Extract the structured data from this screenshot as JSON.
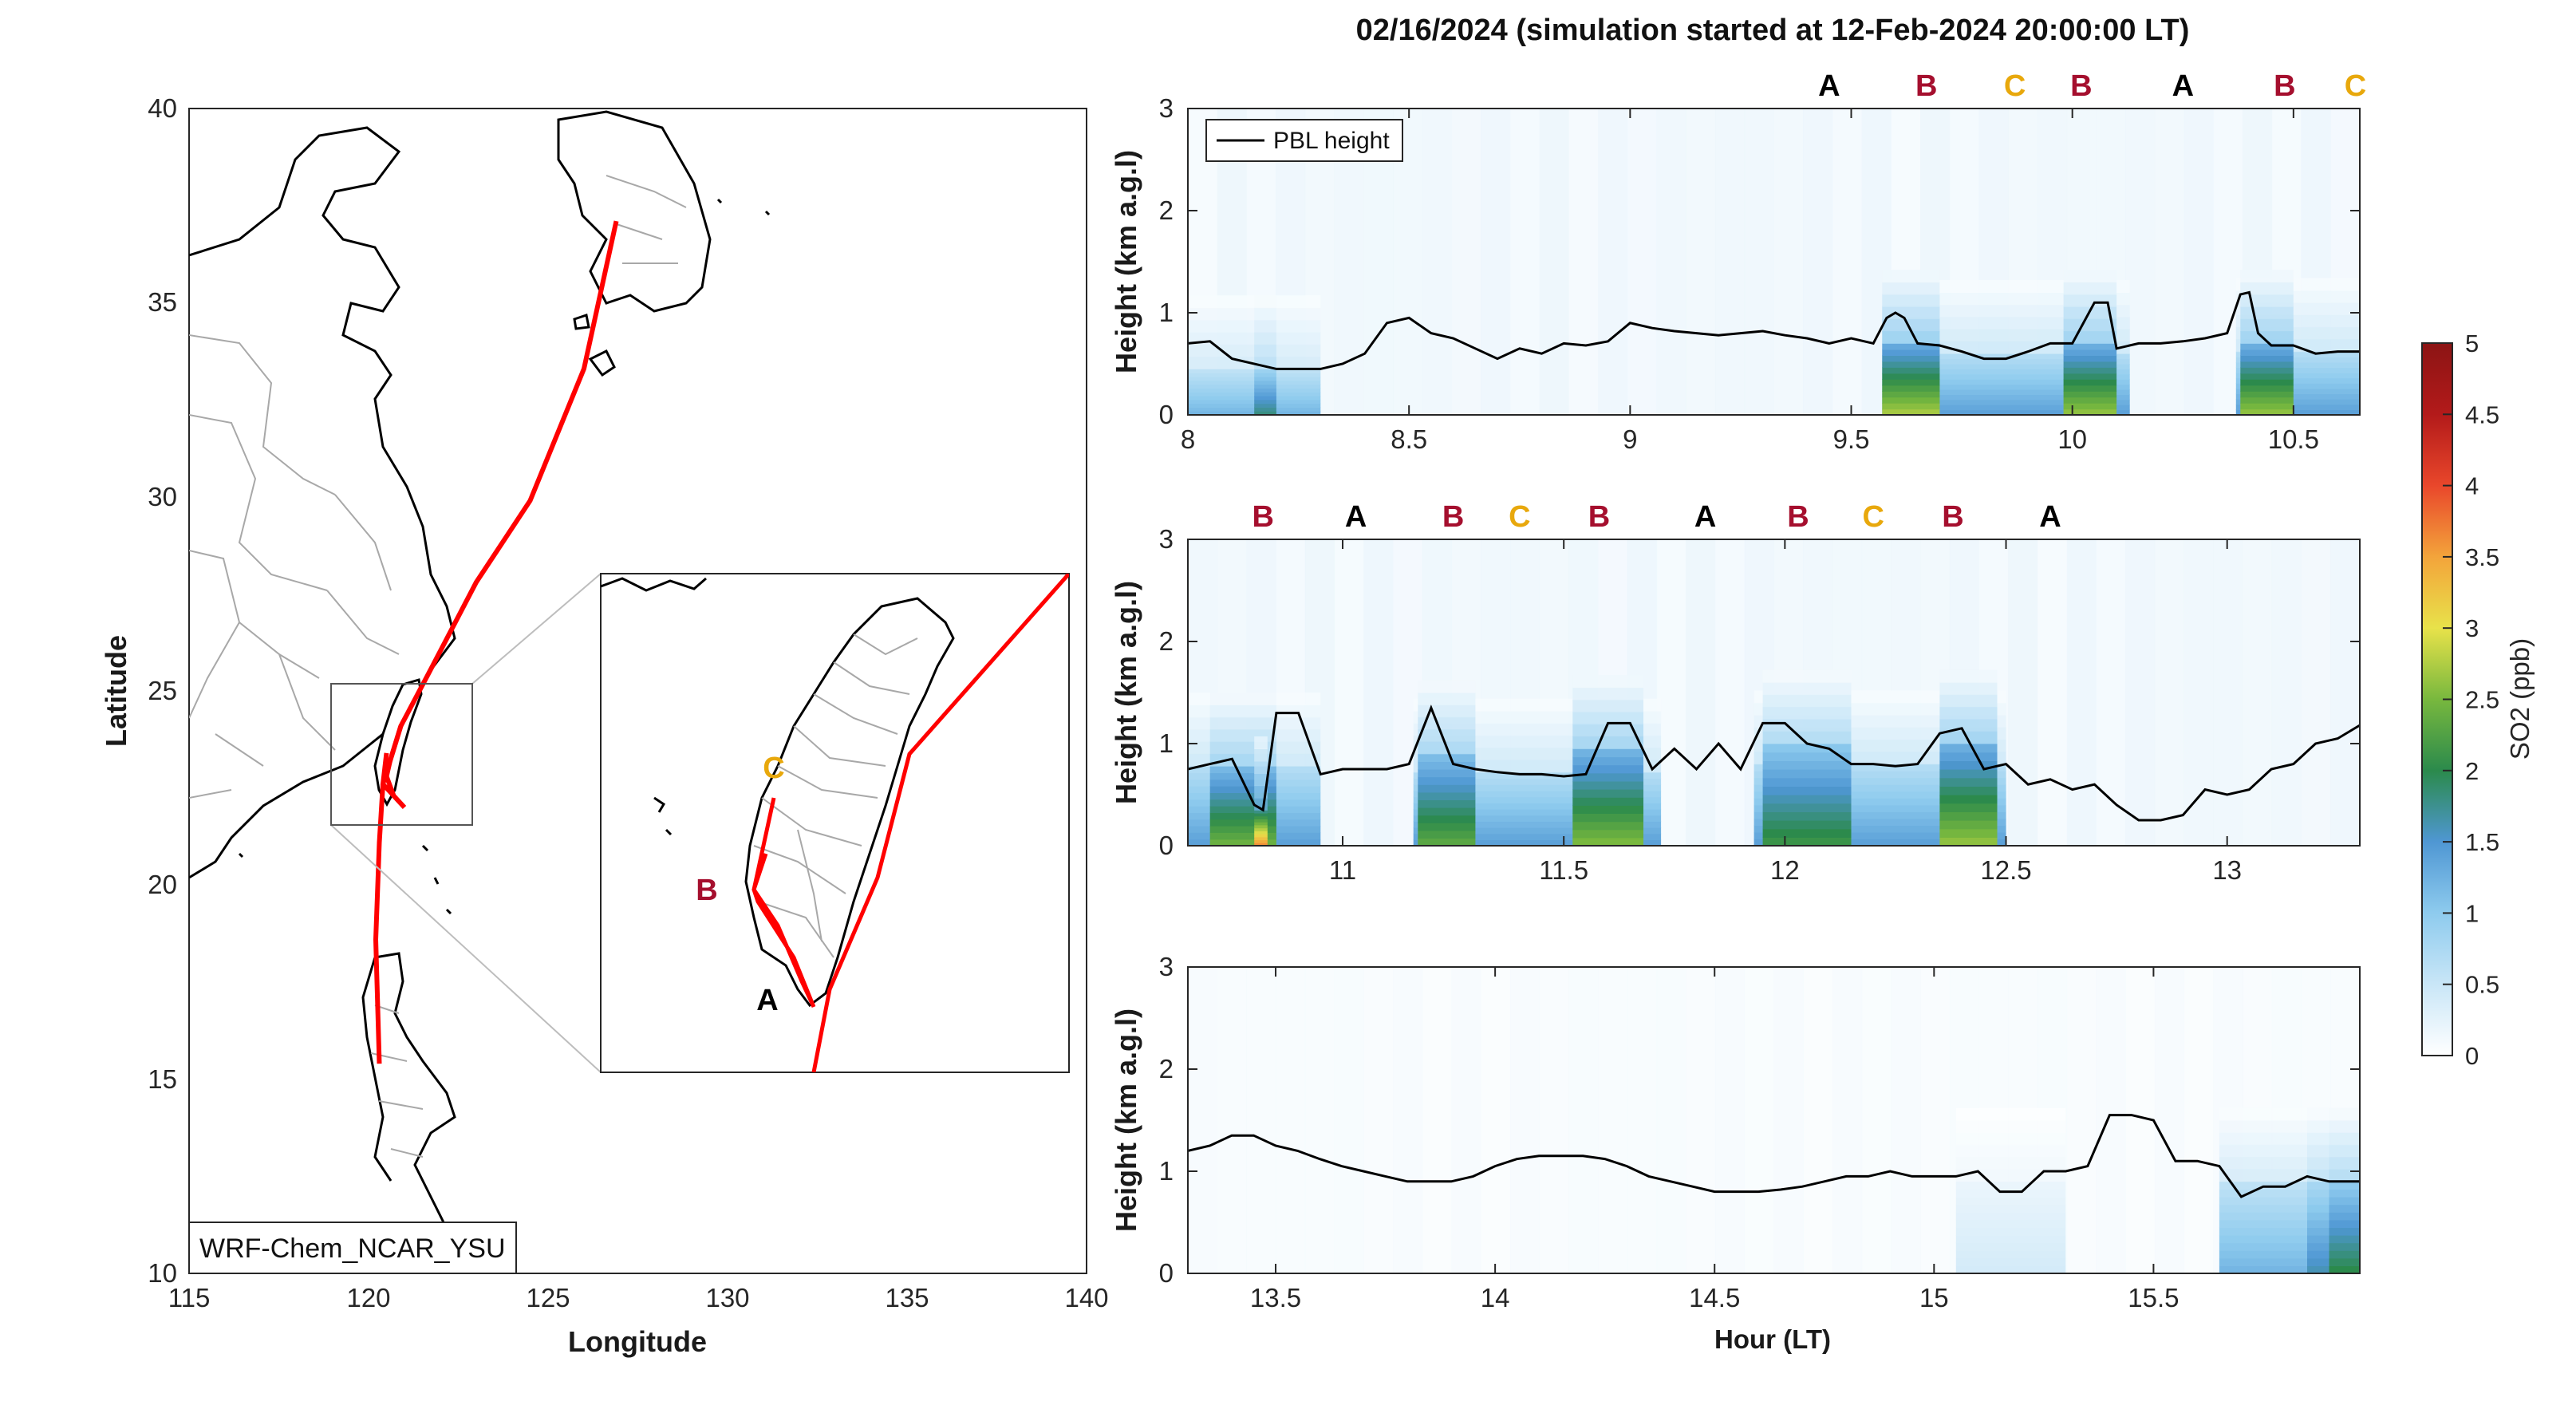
{
  "figure": {
    "title": "02/16/2024 (simulation started at 12-Feb-2024 20:00:00 LT)"
  },
  "map": {
    "xlabel": "Longitude",
    "ylabel": "Latitude",
    "xlim": [
      115,
      140
    ],
    "ylim": [
      10,
      40
    ],
    "xticks": [
      "115",
      "120",
      "125",
      "130",
      "135",
      "140"
    ],
    "yticks": [
      "10",
      "15",
      "20",
      "25",
      "30",
      "35",
      "40"
    ],
    "model_label": "WRF-Chem_NCAR_YSU",
    "track_color": "#ff0000",
    "track": [
      [
        126.9,
        37.1
      ],
      [
        126.0,
        33.3
      ],
      [
        124.5,
        29.9
      ],
      [
        123.0,
        27.8
      ],
      [
        121.7,
        25.5
      ],
      [
        120.9,
        24.1
      ],
      [
        120.4,
        22.6
      ],
      [
        120.3,
        21.1
      ],
      [
        120.2,
        18.6
      ],
      [
        120.3,
        15.4
      ]
    ],
    "inset_box_lonlat": [
      119.0,
      21.5,
      123.1,
      25.6
    ],
    "inset_labels": [
      {
        "text": "A",
        "color": "#000000"
      },
      {
        "text": "B",
        "color": "#a50f2e"
      },
      {
        "text": "C",
        "color": "#e8a80c"
      }
    ]
  },
  "legend": {
    "pbl_label": "PBL height"
  },
  "colorbar": {
    "label": "SO2 (ppb)",
    "ticks": [
      "0",
      "0.5",
      "1",
      "1.5",
      "2",
      "2.5",
      "3",
      "3.5",
      "4",
      "4.5",
      "5"
    ],
    "range": [
      0,
      5
    ],
    "colors": [
      "#ffffff",
      "#c9e6f7",
      "#8ecbee",
      "#4f97d3",
      "#2b8a4c",
      "#78b83e",
      "#e8e24a",
      "#f3a43b",
      "#e9472b",
      "#b31a1a",
      "#8c1414"
    ]
  },
  "panels": [
    {
      "ylabel": "Height (km a.g.l)",
      "xlabel": "",
      "xticks": [
        "8",
        "8.5",
        "9",
        "9.5",
        "10",
        "10.5"
      ],
      "yticks": [
        "0",
        "1",
        "2",
        "3"
      ]
    },
    {
      "ylabel": "Height (km a.g.l)",
      "xlabel": "",
      "xticks": [
        "11",
        "11.5",
        "12",
        "12.5",
        "13"
      ],
      "yticks": [
        "0",
        "1",
        "2",
        "3"
      ]
    },
    {
      "ylabel": "Height (km a.g.l)",
      "xlabel": "Hour (LT)",
      "xticks": [
        "13.5",
        "14",
        "14.5",
        "15",
        "15.5"
      ],
      "yticks": [
        "0",
        "1",
        "2",
        "3"
      ]
    }
  ],
  "chart_data": {
    "type": "heatmap",
    "title": "02/16/2024 (simulation started at 12-Feb-2024 20:00:00 LT)",
    "colorbar_label": "SO2 (ppb)",
    "zlim": [
      0,
      5
    ],
    "panels": [
      {
        "xlim": [
          8.0,
          10.65
        ],
        "ylim": [
          0,
          3
        ],
        "ylabel": "Height (km a.g.l)",
        "segment_labels": [
          {
            "x": 9.45,
            "text": "A"
          },
          {
            "x": 9.67,
            "text": "B"
          },
          {
            "x": 9.87,
            "text": "C"
          },
          {
            "x": 10.02,
            "text": "B"
          },
          {
            "x": 10.25,
            "text": "A"
          },
          {
            "x": 10.48,
            "text": "B"
          },
          {
            "x": 10.64,
            "text": "C"
          }
        ],
        "pbl_height": {
          "x": [
            8.0,
            8.05,
            8.1,
            8.2,
            8.3,
            8.35,
            8.4,
            8.45,
            8.5,
            8.55,
            8.6,
            8.65,
            8.7,
            8.75,
            8.8,
            8.85,
            8.9,
            8.95,
            9.0,
            9.05,
            9.1,
            9.15,
            9.2,
            9.25,
            9.3,
            9.35,
            9.4,
            9.45,
            9.5,
            9.55,
            9.58,
            9.6,
            9.62,
            9.65,
            9.7,
            9.75,
            9.8,
            9.85,
            9.9,
            9.95,
            10.0,
            10.05,
            10.08,
            10.1,
            10.15,
            10.2,
            10.25,
            10.3,
            10.35,
            10.38,
            10.4,
            10.42,
            10.45,
            10.5,
            10.55,
            10.6,
            10.65
          ],
          "y": [
            0.7,
            0.72,
            0.55,
            0.45,
            0.45,
            0.5,
            0.6,
            0.9,
            0.95,
            0.8,
            0.75,
            0.65,
            0.55,
            0.65,
            0.6,
            0.7,
            0.68,
            0.72,
            0.9,
            0.85,
            0.82,
            0.8,
            0.78,
            0.8,
            0.82,
            0.78,
            0.75,
            0.7,
            0.75,
            0.7,
            0.95,
            1.0,
            0.95,
            0.7,
            0.68,
            0.62,
            0.55,
            0.55,
            0.62,
            0.7,
            0.7,
            1.1,
            1.1,
            0.65,
            0.7,
            0.7,
            0.72,
            0.75,
            0.8,
            1.18,
            1.2,
            0.8,
            0.68,
            0.68,
            0.6,
            0.62,
            0.62
          ]
        },
        "so2_blocks": [
          {
            "x0": 8.0,
            "x1": 8.3,
            "top": 0.45,
            "peak": 1.2
          },
          {
            "x0": 8.15,
            "x1": 8.2,
            "top": 0.45,
            "peak": 1.8
          },
          {
            "x0": 9.57,
            "x1": 10.13,
            "top": 0.6,
            "peak": 1.4
          },
          {
            "x0": 9.57,
            "x1": 9.7,
            "top": 0.7,
            "peak": 2.7
          },
          {
            "x0": 9.98,
            "x1": 10.1,
            "top": 0.7,
            "peak": 2.6
          },
          {
            "x0": 10.37,
            "x1": 10.65,
            "top": 0.62,
            "peak": 1.4
          },
          {
            "x0": 10.38,
            "x1": 10.5,
            "top": 0.7,
            "peak": 2.6
          }
        ]
      },
      {
        "xlim": [
          10.65,
          13.3
        ],
        "ylim": [
          0,
          3
        ],
        "ylabel": "Height (km a.g.l)",
        "segment_labels": [
          {
            "x": 10.82,
            "text": "B"
          },
          {
            "x": 11.03,
            "text": "A"
          },
          {
            "x": 11.25,
            "text": "B"
          },
          {
            "x": 11.4,
            "text": "C"
          },
          {
            "x": 11.58,
            "text": "B"
          },
          {
            "x": 11.82,
            "text": "A"
          },
          {
            "x": 12.03,
            "text": "B"
          },
          {
            "x": 12.2,
            "text": "C"
          },
          {
            "x": 12.38,
            "text": "B"
          },
          {
            "x": 12.6,
            "text": "A"
          }
        ],
        "pbl_height": {
          "x": [
            10.65,
            10.7,
            10.75,
            10.8,
            10.82,
            10.85,
            10.9,
            10.95,
            11.0,
            11.05,
            11.1,
            11.15,
            11.2,
            11.25,
            11.3,
            11.35,
            11.4,
            11.45,
            11.5,
            11.55,
            11.6,
            11.65,
            11.7,
            11.75,
            11.8,
            11.85,
            11.9,
            11.95,
            12.0,
            12.05,
            12.1,
            12.15,
            12.2,
            12.25,
            12.3,
            12.35,
            12.4,
            12.45,
            12.5,
            12.55,
            12.6,
            12.65,
            12.7,
            12.75,
            12.8,
            12.85,
            12.9,
            12.95,
            13.0,
            13.05,
            13.1,
            13.15,
            13.2,
            13.25,
            13.3
          ],
          "y": [
            0.75,
            0.8,
            0.85,
            0.4,
            0.35,
            1.3,
            1.3,
            0.7,
            0.75,
            0.75,
            0.75,
            0.8,
            1.35,
            0.8,
            0.75,
            0.72,
            0.7,
            0.7,
            0.68,
            0.7,
            1.2,
            1.2,
            0.75,
            0.95,
            0.75,
            1.0,
            0.75,
            1.2,
            1.2,
            1.0,
            0.95,
            0.8,
            0.8,
            0.78,
            0.8,
            1.1,
            1.15,
            0.75,
            0.8,
            0.6,
            0.65,
            0.55,
            0.6,
            0.4,
            0.25,
            0.25,
            0.3,
            0.55,
            0.5,
            0.55,
            0.75,
            0.8,
            1.0,
            1.05,
            1.18
          ]
        },
        "so2_blocks": [
          {
            "x0": 10.65,
            "x1": 10.95,
            "top": 0.78,
            "peak": 1.4
          },
          {
            "x0": 10.7,
            "x1": 10.85,
            "top": 0.78,
            "peak": 2.4
          },
          {
            "x0": 10.8,
            "x1": 10.83,
            "top": 0.35,
            "peak": 3.6
          },
          {
            "x0": 11.16,
            "x1": 11.72,
            "top": 0.72,
            "peak": 1.4
          },
          {
            "x0": 11.17,
            "x1": 11.3,
            "top": 0.9,
            "peak": 2.3
          },
          {
            "x0": 11.52,
            "x1": 11.68,
            "top": 0.95,
            "peak": 2.5
          },
          {
            "x0": 11.93,
            "x1": 12.5,
            "top": 0.8,
            "peak": 1.4
          },
          {
            "x0": 11.95,
            "x1": 12.15,
            "top": 1.0,
            "peak": 2.1
          },
          {
            "x0": 12.35,
            "x1": 12.48,
            "top": 1.0,
            "peak": 2.6
          }
        ]
      },
      {
        "xlim": [
          13.3,
          15.97
        ],
        "ylim": [
          0,
          3
        ],
        "ylabel": "Height (km a.g.l)",
        "xlabel": "Hour (LT)",
        "segment_labels": [],
        "pbl_height": {
          "x": [
            13.3,
            13.35,
            13.4,
            13.45,
            13.5,
            13.55,
            13.6,
            13.65,
            13.7,
            13.75,
            13.8,
            13.85,
            13.9,
            13.95,
            14.0,
            14.05,
            14.1,
            14.15,
            14.2,
            14.25,
            14.3,
            14.35,
            14.4,
            14.45,
            14.5,
            14.55,
            14.6,
            14.65,
            14.7,
            14.75,
            14.8,
            14.85,
            14.9,
            14.95,
            15.0,
            15.05,
            15.1,
            15.15,
            15.2,
            15.25,
            15.3,
            15.35,
            15.4,
            15.45,
            15.5,
            15.55,
            15.6,
            15.65,
            15.7,
            15.75,
            15.8,
            15.85,
            15.9,
            15.97
          ],
          "y": [
            1.2,
            1.25,
            1.35,
            1.35,
            1.25,
            1.2,
            1.12,
            1.05,
            1.0,
            0.95,
            0.9,
            0.9,
            0.9,
            0.95,
            1.05,
            1.12,
            1.15,
            1.15,
            1.15,
            1.12,
            1.05,
            0.95,
            0.9,
            0.85,
            0.8,
            0.8,
            0.8,
            0.82,
            0.85,
            0.9,
            0.95,
            0.95,
            1.0,
            0.95,
            0.95,
            0.95,
            1.0,
            0.8,
            0.8,
            1.0,
            1.0,
            1.05,
            1.55,
            1.55,
            1.5,
            1.1,
            1.1,
            1.05,
            0.75,
            0.85,
            0.85,
            0.95,
            0.9,
            0.9
          ]
        },
        "so2_blocks": [
          {
            "x0": 15.05,
            "x1": 15.3,
            "top": 0.9,
            "peak": 0.4
          },
          {
            "x0": 15.65,
            "x1": 15.97,
            "top": 0.9,
            "peak": 1.2
          },
          {
            "x0": 15.85,
            "x1": 15.9,
            "top": 0.9,
            "peak": 1.6
          },
          {
            "x0": 15.9,
            "x1": 15.97,
            "top": 0.9,
            "peak": 2.0
          }
        ]
      }
    ]
  }
}
